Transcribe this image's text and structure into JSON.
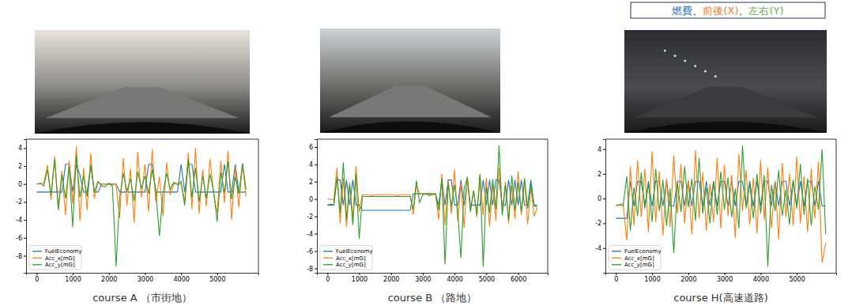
{
  "legend_banner": {
    "segments": [
      {
        "text": "燃費",
        "color": "#2e75b6"
      },
      {
        "text": "、",
        "color": "#000000"
      },
      {
        "text": "前後(X)",
        "color": "#ed7d31"
      },
      {
        "text": "、",
        "color": "#000000"
      },
      {
        "text": "左右(Y)",
        "color": "#70ad47"
      }
    ]
  },
  "chart_data": [
    {
      "type": "line",
      "title": "course A （市街地）",
      "legend": "lower left",
      "grid": false,
      "xlim": [
        -292,
        6142
      ],
      "ylim": [
        -9.9,
        5.0
      ],
      "xticks": [
        0,
        1000,
        2000,
        3000,
        4000,
        5000
      ],
      "yticks": [
        -8,
        -6,
        -4,
        -2,
        0,
        2,
        4
      ],
      "x": [
        0,
        100,
        200,
        300,
        400,
        500,
        600,
        700,
        800,
        900,
        1000,
        1100,
        1200,
        1300,
        1400,
        1500,
        1600,
        1700,
        1800,
        1900,
        2000,
        2100,
        2200,
        2300,
        2400,
        2500,
        2600,
        2700,
        2800,
        2900,
        3000,
        3100,
        3200,
        3300,
        3400,
        3500,
        3600,
        3700,
        3800,
        3900,
        4000,
        4100,
        4200,
        4300,
        4400,
        4500,
        4600,
        4700,
        4800,
        4900,
        5000,
        5100,
        5200,
        5300,
        5400,
        5500,
        5600,
        5700,
        5800
      ],
      "series": [
        {
          "name": "FuelEconomy",
          "color": "#1f77b4",
          "values": [
            -0.9,
            -0.9,
            -0.9,
            -0.9,
            -0.9,
            -0.9,
            -0.9,
            -0.9,
            2.2,
            2.2,
            -0.9,
            2.2,
            1.0,
            -0.9,
            -0.9,
            2.2,
            -0.9,
            -0.9,
            0.0,
            0.0,
            0.0,
            0.0,
            0.0,
            -0.9,
            -0.9,
            -0.9,
            -0.9,
            -0.9,
            -0.9,
            -0.9,
            -0.9,
            2.2,
            2.2,
            -0.9,
            -0.9,
            -0.9,
            -0.9,
            -0.9,
            -0.9,
            -0.9,
            2.2,
            -0.9,
            2.2,
            2.2,
            -0.9,
            -0.9,
            -0.9,
            -0.9,
            -0.9,
            -0.9,
            -0.9,
            -0.9,
            2.2,
            -0.9,
            -0.9,
            2.2,
            -0.9,
            -0.9,
            -0.9
          ]
        },
        {
          "name": "Acc_x[mG]",
          "color": "#ff7f0e",
          "values": [
            0.0,
            0.0,
            0.1,
            2.1,
            -1.8,
            3.1,
            -2.7,
            1.5,
            -3.5,
            2.6,
            -2.2,
            4.2,
            -4.1,
            1.8,
            -2.9,
            3.4,
            -1.6,
            0.2,
            0.0,
            0.0,
            0.0,
            -0.1,
            0.0,
            -3.8,
            2.9,
            -2.4,
            1.7,
            -4.3,
            3.6,
            -1.5,
            2.2,
            -3.1,
            3.9,
            -2.0,
            0.8,
            -3.6,
            2.4,
            -1.2,
            0.0,
            0.1,
            0.0,
            -1.9,
            3.5,
            -2.8,
            4.0,
            -3.3,
            1.6,
            -2.5,
            2.8,
            -1.0,
            -3.2,
            2.6,
            -2.1,
            3.7,
            -4.0,
            1.9,
            -2.6,
            2.2,
            -1.4
          ]
        },
        {
          "name": "Acc_y[mG]",
          "color": "#2ca02c",
          "values": [
            0.0,
            0.1,
            -0.2,
            1.6,
            -1.2,
            2.8,
            -2.9,
            1.0,
            -1.6,
            1.9,
            -4.8,
            3.2,
            -1.5,
            0.9,
            -1.4,
            2.0,
            -0.9,
            0.3,
            -0.2,
            -0.3,
            0.1,
            -0.3,
            -9.2,
            -1.5,
            1.2,
            -0.8,
            0.6,
            -1.9,
            1.4,
            -0.5,
            0.9,
            -1.1,
            1.6,
            -0.7,
            -5.8,
            -1.0,
            1.2,
            -0.6,
            0.2,
            -0.1,
            0.3,
            -2.4,
            2.7,
            -1.5,
            1.8,
            -2.0,
            0.9,
            -1.6,
            1.1,
            -0.8,
            -4.2,
            1.3,
            -1.0,
            2.5,
            -1.7,
            0.8,
            -1.1,
            2.3,
            -0.6
          ]
        }
      ]
    },
    {
      "type": "line",
      "title": "course B （路地）",
      "legend": "lower left",
      "grid": false,
      "xlim": [
        -330,
        6930
      ],
      "ylim": [
        -8.5,
        6.9
      ],
      "xticks": [
        0,
        1000,
        2000,
        3000,
        4000,
        5000,
        6000
      ],
      "yticks": [
        -8,
        -6,
        -4,
        -2,
        0,
        2,
        4,
        6
      ],
      "x": [
        0,
        100,
        200,
        300,
        400,
        500,
        600,
        700,
        800,
        900,
        1000,
        1100,
        1200,
        1300,
        1400,
        1500,
        1600,
        1700,
        1800,
        1900,
        2000,
        2100,
        2200,
        2300,
        2400,
        2500,
        2600,
        2700,
        2800,
        2900,
        3000,
        3100,
        3200,
        3300,
        3400,
        3500,
        3600,
        3700,
        3800,
        3900,
        4000,
        4100,
        4200,
        4300,
        4400,
        4500,
        4600,
        4700,
        4800,
        4900,
        5000,
        5100,
        5200,
        5300,
        5400,
        5500,
        5600,
        5700,
        5800,
        5900,
        6000,
        6100,
        6200,
        6300,
        6400,
        6500,
        6600
      ],
      "series": [
        {
          "name": "FuelEconomy",
          "color": "#1f77b4",
          "values": [
            -0.7,
            -0.7,
            -0.7,
            2.2,
            2.2,
            -0.7,
            2.2,
            -0.7,
            2.2,
            -0.7,
            -0.7,
            -1.3,
            -1.3,
            -1.3,
            -1.3,
            -1.3,
            -1.3,
            -1.3,
            -1.3,
            -1.3,
            -1.3,
            -1.3,
            -1.3,
            -1.3,
            -1.3,
            -1.3,
            -1.3,
            0.6,
            0.6,
            0.6,
            0.6,
            0.6,
            0.6,
            0.6,
            0.6,
            -0.7,
            2.2,
            -0.7,
            2.2,
            2.2,
            -0.7,
            -0.7,
            2.2,
            -0.7,
            2.2,
            -0.7,
            -0.7,
            -0.7,
            -0.7,
            2.2,
            -0.7,
            2.2,
            -0.7,
            2.2,
            2.2,
            -0.7,
            -0.7,
            2.2,
            -0.7,
            2.2,
            -0.7,
            2.2,
            -0.7,
            -0.7,
            2.2,
            -0.7,
            -0.7
          ]
        },
        {
          "name": "Acc_x[mG]",
          "color": "#ff7f0e",
          "values": [
            0.0,
            0.0,
            -0.1,
            3.6,
            -2.8,
            2.4,
            -3.2,
            1.9,
            -2.2,
            3.8,
            -1.5,
            0.5,
            0.5,
            0.5,
            0.4,
            0.5,
            0.5,
            0.5,
            0.5,
            0.5,
            0.5,
            0.5,
            0.4,
            0.5,
            0.5,
            0.5,
            0.5,
            -1.8,
            1.6,
            0.6,
            0.6,
            0.6,
            0.7,
            0.6,
            0.6,
            -2.4,
            2.9,
            -3.0,
            2.2,
            -1.7,
            3.4,
            -2.6,
            1.8,
            -3.3,
            2.6,
            -1.2,
            1.0,
            -2.1,
            2.9,
            -1.9,
            2.4,
            -3.1,
            1.7,
            -2.5,
            3.6,
            -1.4,
            2.0,
            -2.8,
            1.5,
            -2.3,
            3.2,
            -1.8,
            2.1,
            -2.9,
            1.3,
            -2.0,
            -1.0
          ]
        },
        {
          "name": "Acc_y[mG]",
          "color": "#2ca02c",
          "values": [
            -0.7,
            -0.6,
            -0.7,
            2.6,
            -1.6,
            4.2,
            -2.4,
            1.7,
            -3.0,
            2.9,
            -4.6,
            0.3,
            0.3,
            0.3,
            0.3,
            0.3,
            0.3,
            0.3,
            0.3,
            0.3,
            0.3,
            0.3,
            0.3,
            0.3,
            0.3,
            0.3,
            0.3,
            -1.2,
            2.1,
            -0.4,
            0.5,
            0.6,
            0.4,
            0.5,
            0.6,
            -1.3,
            2.4,
            -7.5,
            1.8,
            -0.9,
            1.6,
            -1.4,
            -6.8,
            1.2,
            2.5,
            -1.5,
            1.0,
            -1.8,
            2.8,
            -7.8,
            1.4,
            -1.6,
            2.3,
            -1.2,
            6.2,
            -1.9,
            1.6,
            -2.4,
            2.7,
            -1.3,
            1.9,
            -1.5,
            2.4,
            -1.1,
            1.7,
            -0.8,
            -0.9
          ]
        }
      ]
    },
    {
      "type": "line",
      "title": "course H(高速道路)",
      "legend": "lower left",
      "grid": false,
      "xlim": [
        -290,
        6090
      ],
      "ylim": [
        -6.0,
        4.8
      ],
      "xticks": [
        0,
        1000,
        2000,
        3000,
        4000,
        5000
      ],
      "yticks": [
        -4,
        -2,
        0,
        2,
        4
      ],
      "x": [
        0,
        100,
        200,
        300,
        400,
        500,
        600,
        700,
        800,
        900,
        1000,
        1100,
        1200,
        1300,
        1400,
        1500,
        1600,
        1700,
        1800,
        1900,
        2000,
        2100,
        2200,
        2300,
        2400,
        2500,
        2600,
        2700,
        2800,
        2900,
        3000,
        3100,
        3200,
        3300,
        3400,
        3500,
        3600,
        3700,
        3800,
        3900,
        4000,
        4100,
        4200,
        4300,
        4400,
        4500,
        4600,
        4700,
        4800,
        4900,
        5000,
        5100,
        5200,
        5300,
        5400,
        5500,
        5600,
        5700,
        5800
      ],
      "series": [
        {
          "name": "FuelEconomy",
          "color": "#1f77b4",
          "values": [
            -1.6,
            -1.6,
            -1.6,
            -1.6,
            1.4,
            -0.6,
            1.4,
            1.4,
            -0.6,
            1.4,
            -0.6,
            1.4,
            1.4,
            -0.6,
            1.4,
            -0.6,
            -0.6,
            1.4,
            1.4,
            -0.6,
            1.4,
            -0.6,
            1.4,
            1.4,
            -0.6,
            1.4,
            -0.6,
            1.4,
            -0.6,
            1.4,
            1.4,
            -0.6,
            1.4,
            -0.6,
            1.4,
            1.4,
            -0.6,
            1.4,
            -0.6,
            1.4,
            -0.6,
            1.4,
            1.4,
            -0.6,
            1.4,
            -0.6,
            1.4,
            1.4,
            -0.6,
            1.4,
            -0.6,
            1.4,
            -0.6,
            1.4,
            1.4,
            -0.6,
            1.4,
            -0.6,
            -0.6
          ]
        },
        {
          "name": "Acc_x[mG]",
          "color": "#ff7f0e",
          "values": [
            -0.5,
            -0.5,
            -0.4,
            -3.4,
            2.6,
            -2.2,
            3.1,
            -1.5,
            2.4,
            -2.7,
            3.8,
            -1.9,
            2.2,
            -3.0,
            1.6,
            -2.3,
            3.5,
            -1.2,
            2.8,
            -2.0,
            1.5,
            -2.9,
            3.9,
            -1.6,
            2.1,
            -2.6,
            1.2,
            -1.9,
            3.3,
            -2.4,
            2.7,
            -1.4,
            1.9,
            -3.2,
            3.6,
            -1.0,
            2.3,
            -2.1,
            1.7,
            -2.8,
            3.1,
            -1.7,
            2.5,
            -2.4,
            1.4,
            -3.3,
            2.9,
            -1.5,
            2.0,
            -2.2,
            3.4,
            -2.0,
            1.8,
            -2.7,
            2.4,
            -1.6,
            3.0,
            -5.2,
            -3.6
          ]
        },
        {
          "name": "Acc_y[mG]",
          "color": "#2ca02c",
          "values": [
            -0.6,
            -0.5,
            -0.6,
            1.8,
            -2.6,
            0.9,
            -1.4,
            2.1,
            -0.8,
            1.2,
            -1.9,
            2.4,
            -1.0,
            1.5,
            -2.2,
            0.8,
            -4.4,
            1.3,
            -1.1,
            2.6,
            -0.7,
            1.6,
            -1.8,
            3.3,
            -1.2,
            0.9,
            -2.0,
            1.4,
            -1.3,
            2.2,
            -0.9,
            1.7,
            -1.5,
            0.8,
            -2.4,
            4.3,
            -0.8,
            1.2,
            -1.6,
            2.0,
            -1.2,
            1.9,
            -5.5,
            1.1,
            -1.0,
            2.3,
            -1.4,
            0.7,
            -2.1,
            1.5,
            -0.8,
            2.8,
            -1.3,
            1.6,
            -2.2,
            1.0,
            -0.9,
            4.0,
            -2.9
          ]
        }
      ]
    }
  ]
}
